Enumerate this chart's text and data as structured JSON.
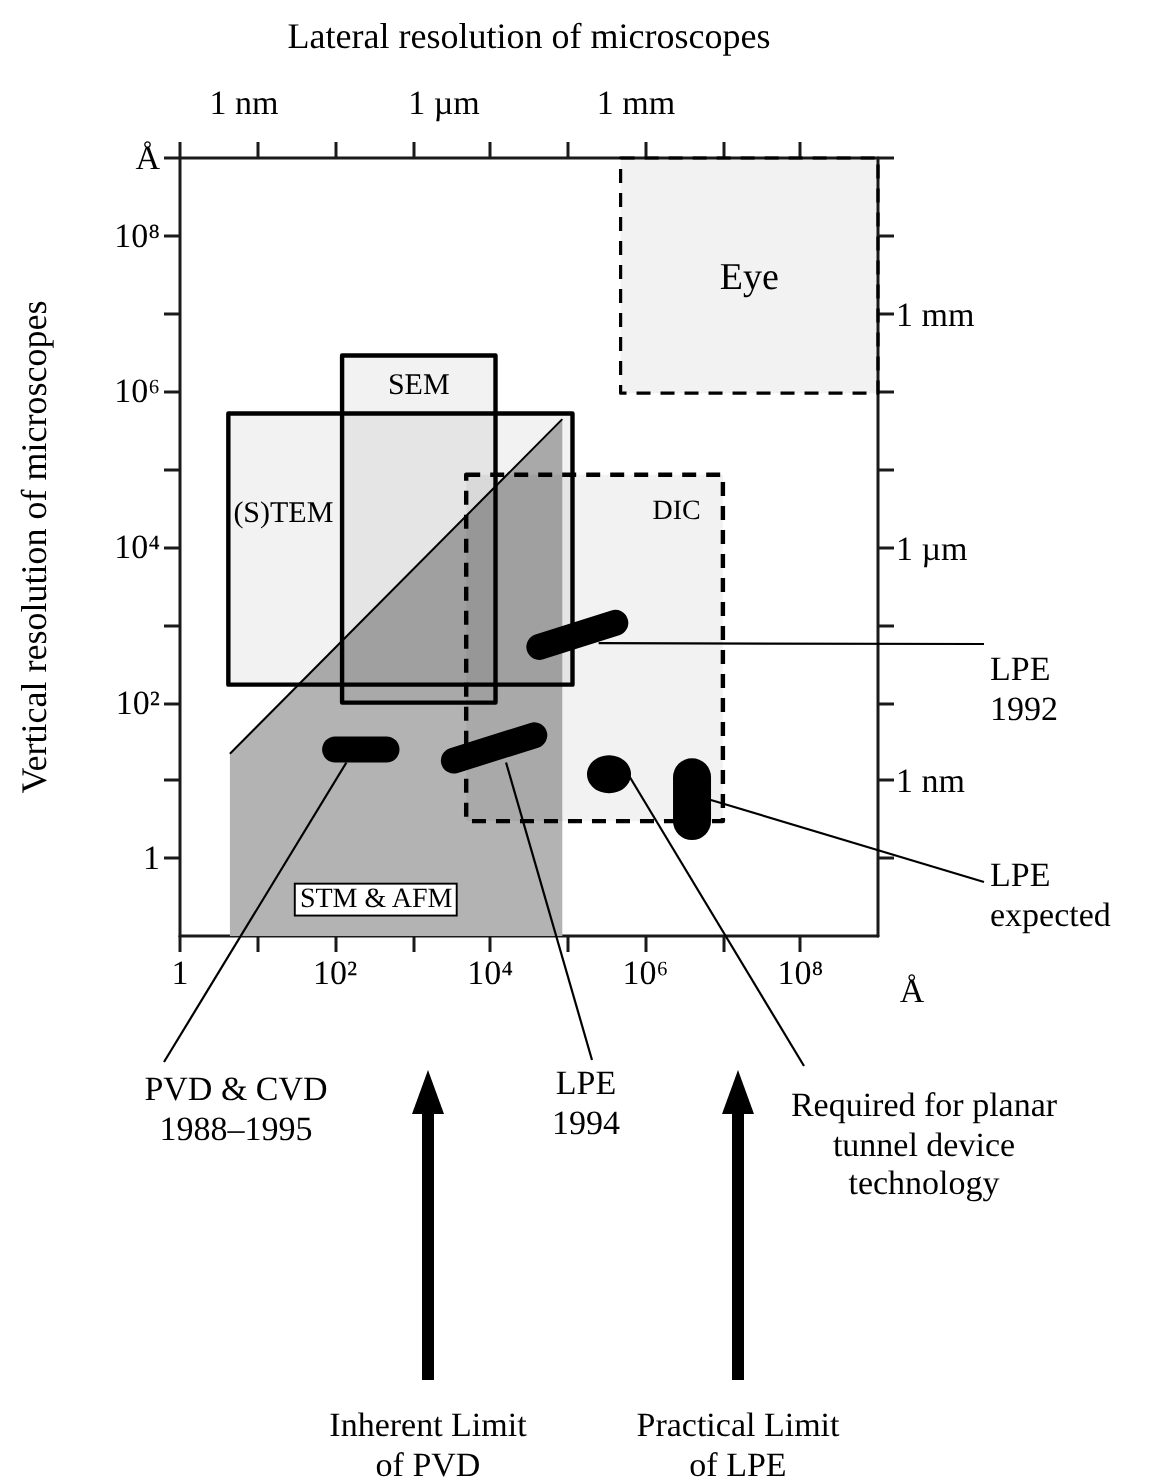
{
  "chart_data": {
    "type": "line",
    "xlabel": "Lateral resolution of microscopes",
    "ylabel": "Vertical resolution of microscopes",
    "log": "xy",
    "xlim": [
      1,
      1000000000
    ],
    "ylim": [
      0.1,
      1000000000
    ],
    "xticks": [
      1,
      {
        "value": 10,
        "label": null
      },
      {
        "value": 100,
        "label": "10²"
      },
      {
        "value": 1000,
        "label": null
      },
      {
        "value": 10000,
        "label": "10⁴"
      },
      {
        "value": 100000,
        "label": null
      },
      {
        "value": 1000000,
        "label": "10⁶"
      },
      {
        "value": 10000000,
        "label": null
      },
      {
        "value": 100000000,
        "label": "10⁸"
      }
    ],
    "yticks": [
      1,
      {
        "value": 10,
        "label": null
      },
      {
        "value": 100,
        "label": "10²"
      },
      {
        "value": 1000,
        "label": null
      },
      {
        "value": 10000,
        "label": "10⁴"
      },
      {
        "value": 100000,
        "label": null
      },
      {
        "value": 1000000,
        "label": "10⁶"
      },
      {
        "value": 10000000,
        "label": null
      },
      {
        "value": 100000000,
        "label": "10⁸"
      },
      {
        "value": 1000000000,
        "label": "Å"
      }
    ],
    "series": [
      {
        "type": "area",
        "name": "STM & AFM",
        "color": "#b3b3b3",
        "x": [
          4.4,
          85000
        ],
        "values": [
          22,
          440000
        ]
      },
      {
        "name": "(S)TEM",
        "color": "#000000",
        "line_style": "solid",
        "x": [
          4.2,
          115000
        ],
        "values": [
          null,
          null
        ],
        "lower": [
          170,
          170
        ],
        "upper": [
          520000,
          520000
        ]
      },
      {
        "name": "SEM",
        "color": "#000000",
        "line_style": "solid",
        "x": [
          123,
          11700
        ],
        "values": [
          null,
          null
        ],
        "lower": [
          100,
          100
        ],
        "upper": [
          2900000,
          2900000
        ]
      },
      {
        "name": "DIC",
        "color": "#000000",
        "line_style": "dashed",
        "x": [
          4900,
          10000000
        ],
        "values": [
          null,
          null
        ],
        "lower": [
          3,
          3
        ],
        "upper": [
          85000,
          85000
        ]
      },
      {
        "name": "Eye",
        "color": "#000000",
        "line_style": "dashed",
        "x": [
          480000,
          1000000000
        ],
        "values": [
          null,
          null
        ],
        "lower": [
          950000,
          950000
        ],
        "upper": [
          1000000000,
          1000000000
        ]
      },
      {
        "color": "#000000",
        "line_style": "solid",
        "x": [
          100,
          460
        ],
        "values": [
          25,
          25
        ]
      },
      {
        "color": "#000000",
        "line_style": "solid",
        "x": [
          3400,
          37000
        ],
        "values": [
          18,
          38
        ]
      },
      {
        "color": "#000000",
        "line_style": "solid",
        "x": [
          43000,
          410000
        ],
        "values": [
          520,
          1060
        ]
      },
      {
        "type": "scatter",
        "color": "#000000",
        "marker": "circle",
        "x": [
          340000
        ],
        "values": [
          12
        ]
      },
      {
        "color": "#000000",
        "line_style": "solid",
        "x": [
          4000000,
          4000000
        ],
        "values": [
          11,
          3
        ]
      }
    ],
    "annotations": [
      {
        "text": "LPE 1992",
        "x": 250000,
        "y": 580
      },
      {
        "text": "LPE expected",
        "x": 7000000,
        "y": 5.6
      },
      {
        "text": "Required for planar tunnel device technology",
        "x": 600000,
        "y": 12
      },
      {
        "text": "LPE 1994",
        "x": 16000,
        "y": 17
      },
      {
        "text": "PVD & CVD 1988–1995",
        "x": 140,
        "y": 17
      },
      "Inherent Limit of PVD",
      "Practical Limit of LPE",
      "Å",
      "1 nm",
      "1 µm",
      "1 mm",
      "1 nm",
      "1 µm",
      "1 mm"
    ]
  }
}
